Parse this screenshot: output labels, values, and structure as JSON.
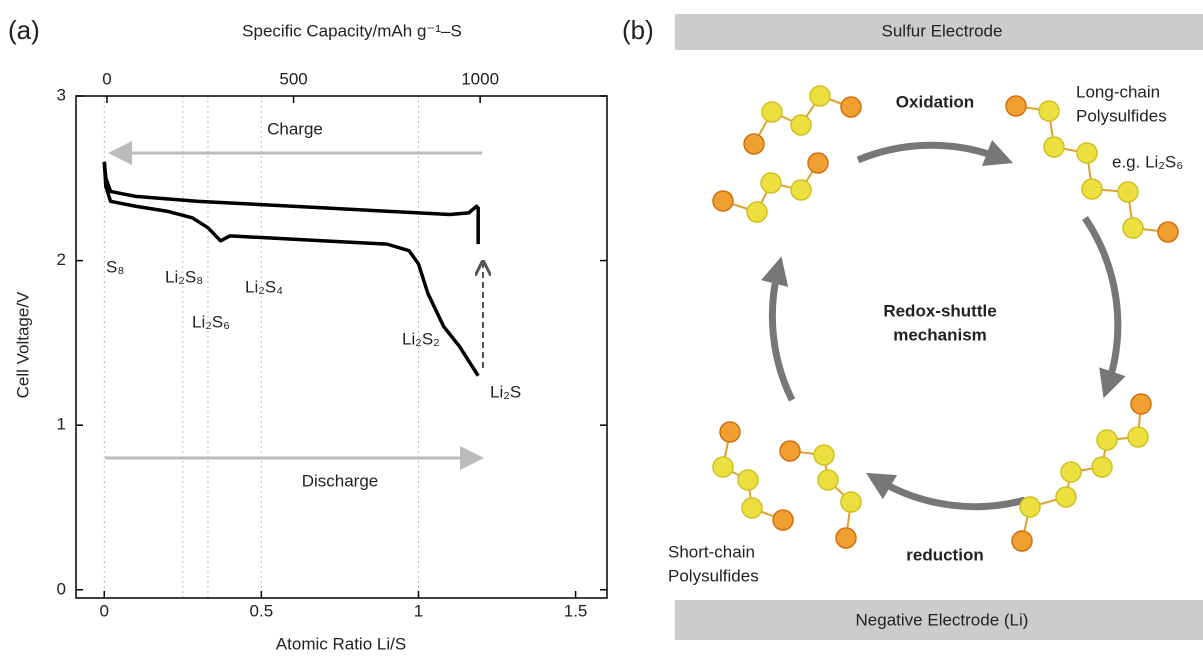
{
  "panel_labels": [
    "(a)",
    "(b)"
  ],
  "chart_data": {
    "type": "line",
    "xlabel": "Atomic Ratio Li/S",
    "ylabel": "Cell Voltage/V",
    "x2label": "Specific Capacity/mAh g⁻¹–S",
    "xlim": [
      -0.09,
      1.6
    ],
    "xticks": [
      0,
      0.5,
      1,
      1.5
    ],
    "ylim": [
      -0.05,
      3
    ],
    "yticks": [
      0,
      1,
      2,
      3
    ],
    "x2lim": [
      -83,
      1340
    ],
    "x2ticks": [
      0,
      500,
      1000
    ],
    "vlines": [
      0,
      0.25,
      0.33,
      0.5,
      1
    ],
    "series": [
      {
        "color": "#000000",
        "x": [
          0,
          0.005,
          0.02,
          0.1,
          0.3,
          0.5,
          0.7,
          0.9,
          1.1,
          1.16,
          1.185,
          1.19,
          1.19
        ],
        "values": [
          2.6,
          2.5,
          2.42,
          2.39,
          2.36,
          2.34,
          2.32,
          2.3,
          2.28,
          2.29,
          2.33,
          2.32,
          2.1
        ]
      },
      {
        "color": "#000000",
        "x": [
          0,
          0.005,
          0.02,
          0.1,
          0.2,
          0.28,
          0.33,
          0.37,
          0.4,
          0.5,
          0.7,
          0.9,
          0.97,
          1.0,
          1.03,
          1.08,
          1.13,
          1.19
        ],
        "values": [
          2.6,
          2.45,
          2.36,
          2.33,
          2.3,
          2.26,
          2.2,
          2.12,
          2.15,
          2.14,
          2.12,
          2.1,
          2.06,
          1.98,
          1.8,
          1.6,
          1.48,
          1.3
        ]
      }
    ],
    "annotations": [
      "S₈",
      "Li₂S₈",
      "Li₂S₆",
      "Li₂S₄",
      "Li₂S₂",
      "Li₂S",
      "Charge",
      "Discharge"
    ]
  },
  "diagram": {
    "top_electrode": "Sulfur Electrode",
    "bottom_electrode": "Negative Electrode (Li)",
    "center": [
      "Redox-shuttle",
      "mechanism"
    ],
    "oxidation": "Oxidation",
    "reduction": "reduction",
    "long_chain": [
      "Long-chain",
      "Polysulfides"
    ],
    "example": "e.g. Li₂S₆",
    "short_chain": [
      "Short-chain",
      "Polysulfides"
    ]
  }
}
